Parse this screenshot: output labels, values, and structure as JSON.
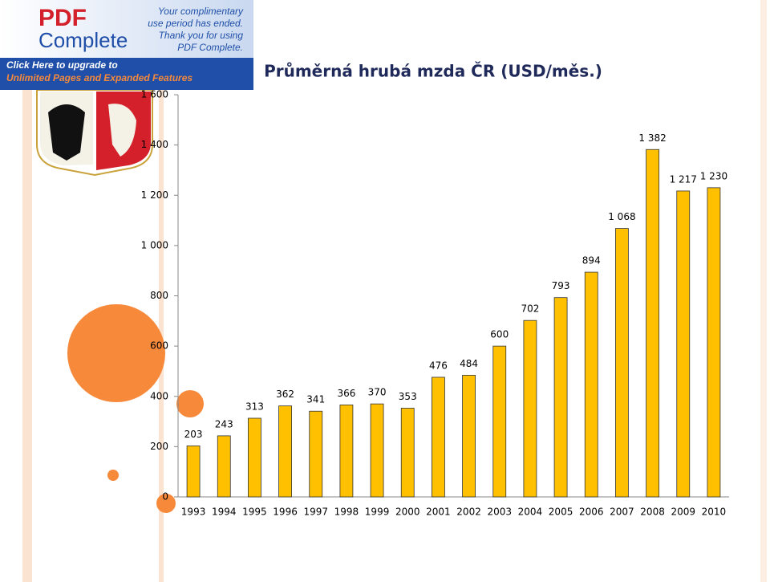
{
  "banner": {
    "brand_line1": "PDF",
    "brand_line2": "Complete",
    "notice": [
      "Your complimentary",
      "use period has ended.",
      "Thank you for using",
      "PDF Complete."
    ],
    "upgrade": [
      "Click Here to upgrade to",
      "Unlimited Pages and Expanded Features"
    ]
  },
  "chart_data": {
    "type": "bar",
    "title": "Průměrná hrubá mzda ČR (USD/měs.)",
    "categories": [
      "1993",
      "1994",
      "1995",
      "1996",
      "1997",
      "1998",
      "1999",
      "2000",
      "2001",
      "2002",
      "2003",
      "2004",
      "2005",
      "2006",
      "2007",
      "2008",
      "2009",
      "2010"
    ],
    "values": [
      203,
      243,
      313,
      362,
      341,
      366,
      370,
      353,
      476,
      484,
      600,
      702,
      793,
      894,
      1068,
      1382,
      1217,
      1230
    ],
    "value_labels": [
      "203",
      "243",
      "313",
      "362",
      "341",
      "366",
      "370",
      "353",
      "476",
      "484",
      "600",
      "702",
      "793",
      "894",
      "1 068",
      "1 382",
      "1 217",
      "1 230"
    ],
    "color": "#ffc000",
    "ylim": [
      0,
      1600
    ],
    "yticks": [
      0,
      200,
      400,
      600,
      800,
      {
        "value": 1000,
        "label": "1 000"
      },
      {
        "value": 1200,
        "label": "1 200"
      },
      {
        "value": 1400,
        "label": "1 400"
      },
      {
        "value": 1600,
        "label": "1 600"
      }
    ],
    "grid": false
  }
}
